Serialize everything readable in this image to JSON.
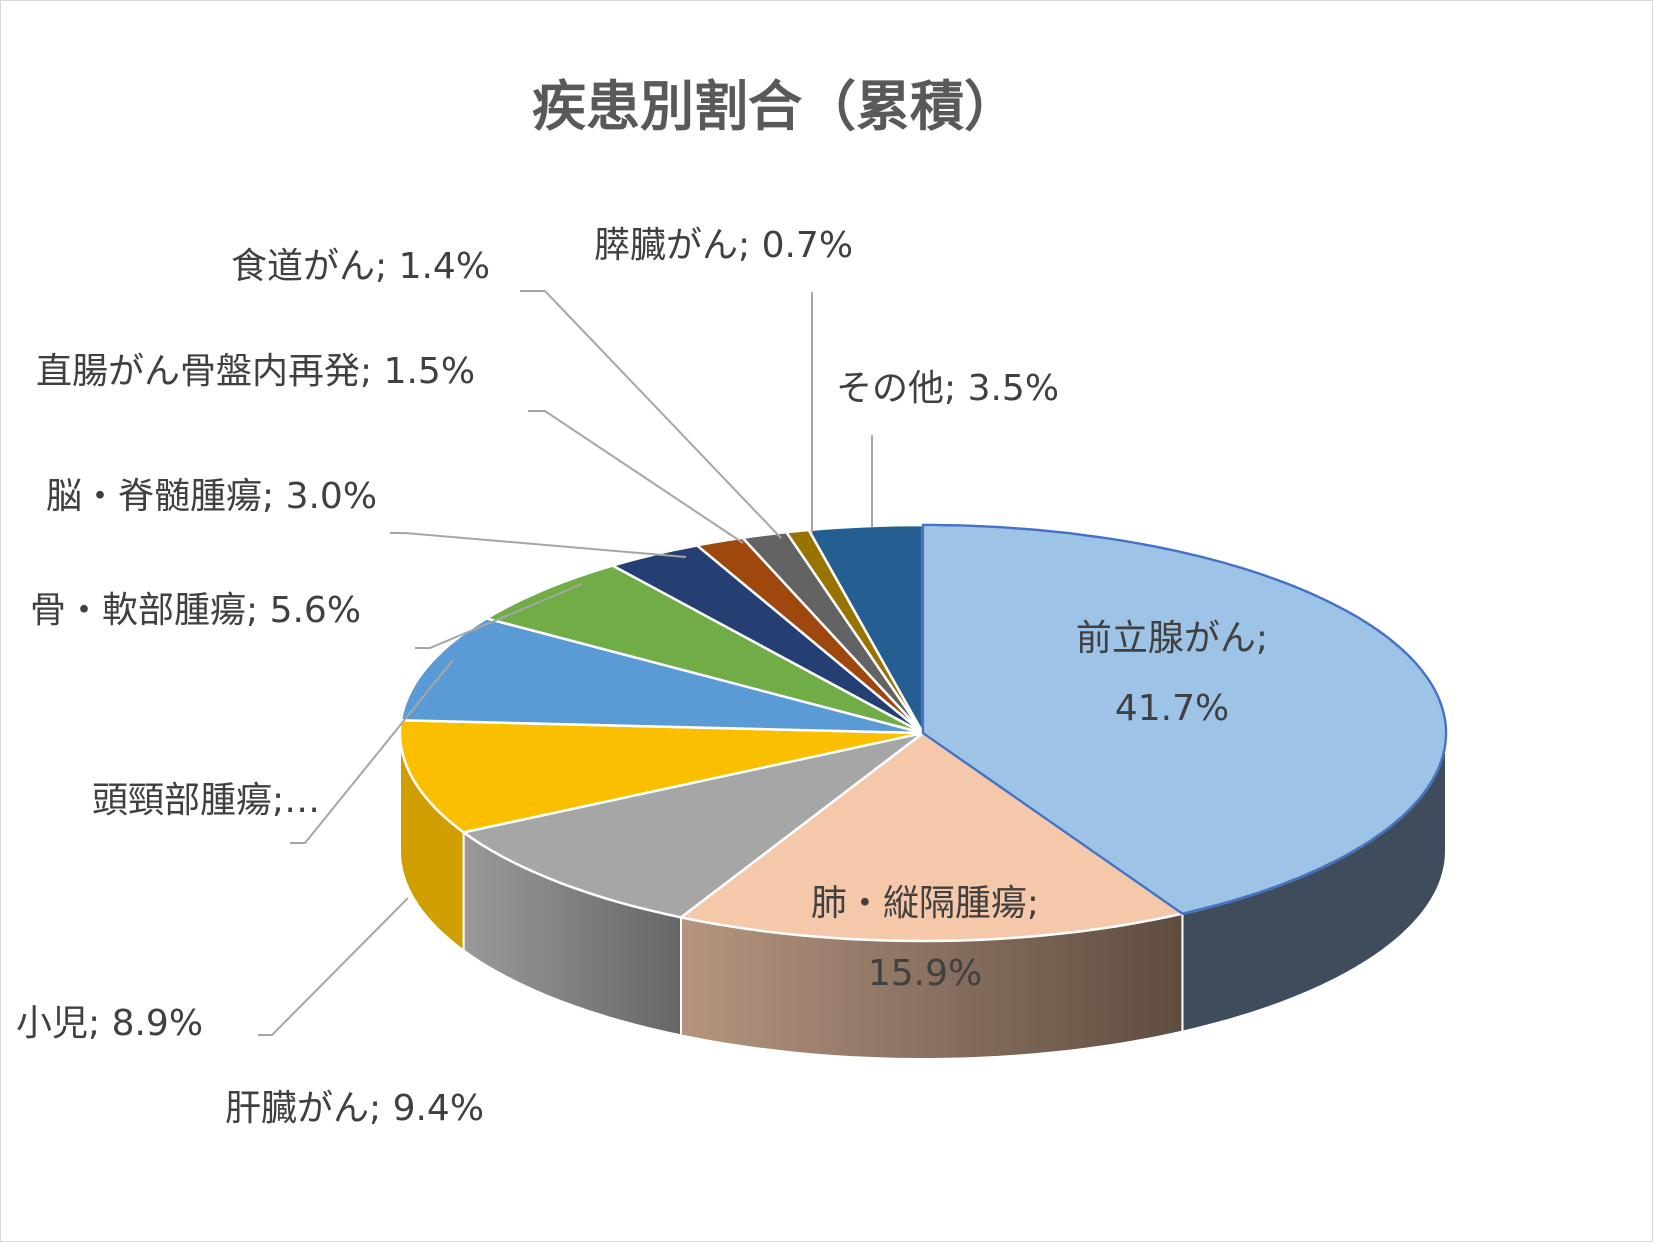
{
  "chart_data": {
    "type": "pie",
    "title": "疾患別割合（累積）",
    "unit": "%",
    "slices": [
      {
        "name": "前立腺がん",
        "value": 41.7,
        "label_lines": [
          "前立腺がん;",
          "41.7%"
        ],
        "top": "#9dc3e6",
        "side": "#3e4c5c",
        "side_light": "#3e4c5c",
        "side_dark": "#3e4c5c"
      },
      {
        "name": "肺・縦隔腫瘍",
        "value": 15.9,
        "label_lines": [
          "肺・縦隔腫瘍;",
          "15.9%"
        ],
        "top": "#f5c8aa",
        "side": "#8d7160",
        "side_light": "#b59580",
        "side_dark": "#5e4c3f"
      },
      {
        "name": "肝臓がん",
        "value": 9.4,
        "label_lines": [
          "肝臓がん; 9.4%"
        ],
        "top": "#a6a6a6",
        "side": "#7a7a7a",
        "side_light": "#9a9a9a",
        "side_dark": "#666666"
      },
      {
        "name": "小児",
        "value": 8.9,
        "label_lines": [
          "小児; 8.9%"
        ],
        "top": "#fac000",
        "side": "#d19e00",
        "side_light": "#d19e00",
        "side_dark": "#d19e00"
      },
      {
        "name": "頭頸部腫瘍",
        "value": 8.3,
        "label_lines": [
          "頭頸部腫瘍;…"
        ],
        "top": "#5b9bd5",
        "side": "#3d6fa0",
        "side_light": "#3d6fa0",
        "side_dark": "#3d6fa0"
      },
      {
        "name": "骨・軟部腫瘍",
        "value": 5.6,
        "label_lines": [
          "骨・軟部腫瘍; 5.6%"
        ],
        "top": "#70ad47",
        "side": "#4e7d31",
        "side_light": "#4e7d31",
        "side_dark": "#4e7d31"
      },
      {
        "name": "脳・脊髄腫瘍",
        "value": 3.0,
        "label_lines": [
          "脳・脊髄腫瘍; 3.0%"
        ],
        "top": "#253f72",
        "side": "#1a2d52",
        "side_light": "#1a2d52",
        "side_dark": "#1a2d52"
      },
      {
        "name": "直腸がん骨盤内再発",
        "value": 1.5,
        "label_lines": [
          "直腸がん骨盤内再発; 1.5%"
        ],
        "top": "#9e480e",
        "side": "#6e320a",
        "side_light": "#6e320a",
        "side_dark": "#6e320a"
      },
      {
        "name": "食道がん",
        "value": 1.4,
        "label_lines": [
          "食道がん; 1.4%"
        ],
        "top": "#636363",
        "side": "#454545",
        "side_light": "#454545",
        "side_dark": "#454545"
      },
      {
        "name": "膵臓がん",
        "value": 0.7,
        "label_lines": [
          "膵臓がん; 0.7%"
        ],
        "top": "#997300",
        "side": "#6b5000",
        "side_light": "#6b5000",
        "side_dark": "#6b5000"
      },
      {
        "name": "その他",
        "value": 3.5,
        "label_lines": [
          "その他; 3.5%"
        ],
        "top": "#255e91",
        "side": "#1a4266",
        "side_light": "#1a4266",
        "side_dark": "#1a4266"
      }
    ],
    "legend": "none",
    "labels": "data labels with leader lines"
  }
}
